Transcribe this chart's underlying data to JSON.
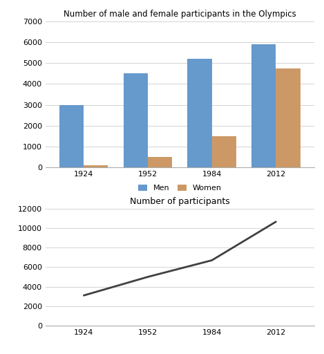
{
  "years": [
    1924,
    1952,
    1984,
    2012
  ],
  "men_values": [
    3000,
    4500,
    5200,
    5900
  ],
  "women_values": [
    100,
    500,
    1500,
    4750
  ],
  "total_values": [
    3100,
    5000,
    6700,
    10650
  ],
  "bar_title": "Number of male and female participants in the Olympics",
  "line_title": "Number of participants",
  "men_color": "#6699CC",
  "women_color": "#CC9966",
  "line_color": "#404040",
  "bar_ylim": [
    0,
    7000
  ],
  "line_ylim": [
    0,
    12000
  ],
  "bar_yticks": [
    0,
    1000,
    2000,
    3000,
    4000,
    5000,
    6000,
    7000
  ],
  "line_yticks": [
    0,
    2000,
    4000,
    6000,
    8000,
    10000,
    12000
  ],
  "legend_labels": [
    "Men",
    "Women"
  ],
  "background_color": "#ffffff",
  "grid_color": "#cccccc"
}
